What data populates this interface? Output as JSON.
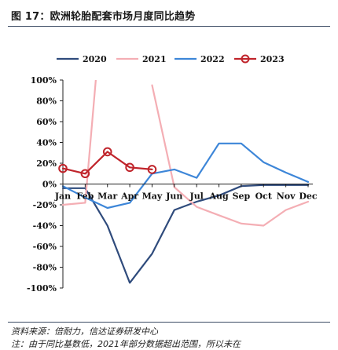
{
  "figure": {
    "title": "图 17：欧洲轮胎配套市场月度同比趋势",
    "source": "资料来源：倍耐力，信达证券研发中心",
    "note": "注：由于同比基数低，2021年部分数据超出范围，所以未在"
  },
  "chart_data": {
    "type": "line",
    "title": "",
    "xlabel": "",
    "ylabel": "",
    "categories": [
      "Jan",
      "Feb",
      "Mar",
      "Apr",
      "May",
      "Jun",
      "Jul",
      "Aug",
      "Sep",
      "Oct",
      "Nov",
      "Dec"
    ],
    "ylim": [
      -100,
      100
    ],
    "yticks": [
      "100%",
      "80%",
      "60%",
      "40%",
      "20%",
      "0%",
      "-20%",
      "-40%",
      "-60%",
      "-80%",
      "-100%"
    ],
    "grid": false,
    "legend": "top",
    "series": [
      {
        "name": "2020",
        "color": "#2f4b7c",
        "markers": false,
        "values": [
          -4,
          -4,
          -40,
          -95,
          -67,
          -25,
          -17,
          -11,
          -2,
          -1,
          -1,
          -1
        ]
      },
      {
        "name": "2021",
        "color": "#f4aeb4",
        "markers": false,
        "values": [
          -20,
          -18,
          230,
          null,
          95,
          -3,
          -22,
          -30,
          -38,
          -40,
          -25,
          -17
        ]
      },
      {
        "name": "2022",
        "color": "#3d86d8",
        "markers": false,
        "values": [
          -2,
          -13,
          -23,
          -18,
          10,
          14,
          6,
          39,
          39,
          21,
          11,
          2
        ]
      },
      {
        "name": "2023",
        "color": "#c0242b",
        "markers": true,
        "values": [
          15,
          10,
          31,
          16,
          14,
          null,
          null,
          null,
          null,
          null,
          null,
          null
        ]
      }
    ]
  }
}
